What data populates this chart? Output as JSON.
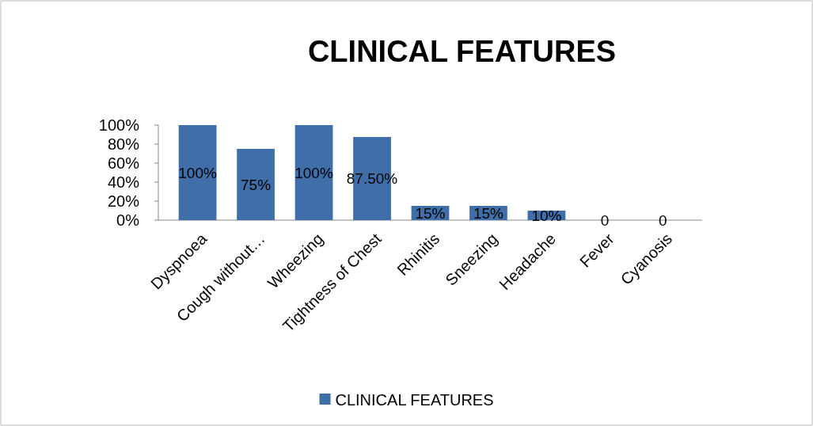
{
  "chart_data": {
    "type": "bar",
    "title": "CLINICAL FEATURES",
    "categories": [
      "Dyspnoea",
      "Cough without…",
      "Wheezing",
      "Tightness of Chest",
      "Rhinitis",
      "Sneezing",
      "Headache",
      "Fever",
      "Cyanosis"
    ],
    "series": [
      {
        "name": "CLINICAL FEATURES",
        "color": "#3f6ea8",
        "values": [
          100,
          75,
          100,
          87.5,
          15,
          15,
          10,
          0,
          0
        ],
        "value_labels": [
          "100%",
          "75%",
          "100%",
          "87.50%",
          "15%",
          "15%",
          "10%",
          "0",
          "0"
        ]
      }
    ],
    "ylim": [
      0,
      100
    ],
    "yticks": [
      {
        "value": 0,
        "label": "0%"
      },
      {
        "value": 20,
        "label": "20%"
      },
      {
        "value": 40,
        "label": "40%"
      },
      {
        "value": 60,
        "label": "60%"
      },
      {
        "value": 80,
        "label": "80%"
      },
      {
        "value": 100,
        "label": "100%"
      }
    ],
    "grid": false,
    "legend": "bottom"
  }
}
